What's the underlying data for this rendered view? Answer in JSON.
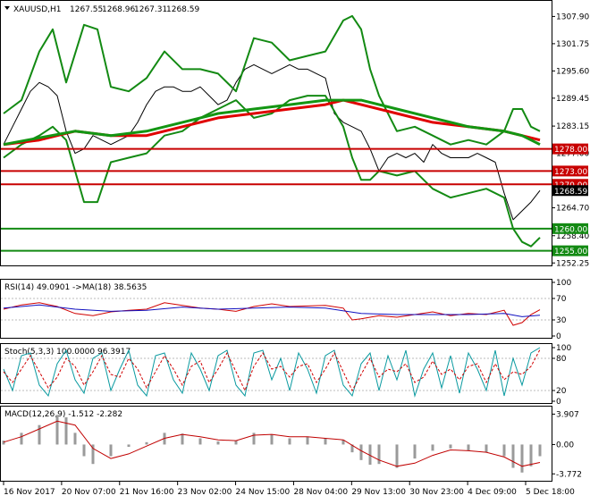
{
  "header": {
    "symbol": "XAUUSD,H1",
    "open": "1267.55",
    "high": "1268.96",
    "low": "1267.31",
    "close": "1268.59"
  },
  "colors": {
    "price": "#000000",
    "bollinger": "#138a13",
    "ma_slow": "#e00000",
    "ma_fast": "#139613",
    "support_line": "#138a13",
    "resistance_line": "#c80000",
    "rsi": "#d00000",
    "rsi_ma": "#1010c0",
    "stoch_main": "#0a9aa0",
    "stoch_signal": "#d00000",
    "macd_hist": "#9a9a9a",
    "macd_signal": "#c00000"
  },
  "chart_data": [
    {
      "type": "line",
      "name": "price_panel",
      "ylim": [
        1252.1,
        1310.0
      ],
      "y_ticks": [
        "1307.90",
        "1301.75",
        "1295.60",
        "1289.45",
        "1283.15",
        "1277.00",
        "1264.70",
        "1258.40",
        "1252.25"
      ],
      "x_ticks": [
        "16 Nov 2017",
        "20 Nov 07:00",
        "21 Nov 16:00",
        "23 Nov 02:00",
        "24 Nov 15:00",
        "28 Nov 04:00",
        "29 Nov 13:00",
        "30 Nov 23:00",
        "4 Dec 09:00",
        "5 Dec 18:00"
      ],
      "horizontal_levels": [
        {
          "label": "1278.00",
          "value": 1278.0,
          "kind": "resistance"
        },
        {
          "label": "1273.00",
          "value": 1273.0,
          "kind": "resistance"
        },
        {
          "label": "1270.00",
          "value": 1270.0,
          "kind": "resistance"
        },
        {
          "label": "1260.00",
          "value": 1260.0,
          "kind": "support"
        },
        {
          "label": "1255.00",
          "value": 1255.0,
          "kind": "support"
        }
      ],
      "current_price_label": "1268.59",
      "series": [
        {
          "role": "price",
          "x": [
            0,
            10,
            20,
            30,
            40,
            50,
            60,
            70,
            80,
            90,
            100,
            110,
            120,
            130,
            140,
            150,
            160,
            170,
            180,
            190,
            200,
            210,
            220,
            230,
            240,
            250,
            260,
            270,
            280,
            290,
            300,
            310,
            320,
            330,
            340,
            350,
            360,
            370,
            380,
            390,
            400,
            410,
            420,
            430,
            440,
            450,
            460,
            470,
            480,
            490,
            500,
            510,
            520,
            530,
            540,
            550,
            560,
            570,
            580,
            590,
            600
          ],
          "values": [
            1279,
            1283,
            1287,
            1291,
            1293,
            1292,
            1290,
            1282,
            1277,
            1278,
            1281,
            1280,
            1279,
            1280,
            1281,
            1284,
            1288,
            1291,
            1292,
            1292,
            1291,
            1291,
            1292,
            1290,
            1288,
            1289,
            1293,
            1296,
            1297,
            1296,
            1295,
            1296,
            1297,
            1296,
            1296,
            1295,
            1294,
            1286,
            1284,
            1283,
            1282,
            1278,
            1273,
            1276,
            1277,
            1276,
            1277,
            1275,
            1279,
            1277,
            1276,
            1276,
            1276,
            1277,
            1276,
            1275,
            1268,
            1262,
            1264,
            1266,
            1268.6
          ]
        },
        {
          "role": "bollinger_upper",
          "x": [
            0,
            20,
            40,
            55,
            70,
            90,
            105,
            120,
            140,
            160,
            180,
            200,
            220,
            240,
            260,
            280,
            300,
            320,
            340,
            360,
            380,
            390,
            400,
            410,
            420,
            440,
            460,
            480,
            500,
            520,
            540,
            560,
            570,
            580,
            590,
            600
          ],
          "values": [
            1286,
            1289,
            1300,
            1305,
            1293,
            1306,
            1305,
            1292,
            1291,
            1294,
            1300,
            1296,
            1296,
            1295,
            1291,
            1303,
            1302,
            1298,
            1299,
            1300,
            1307,
            1308,
            1305,
            1296,
            1290,
            1282,
            1283,
            1281,
            1279,
            1280,
            1279,
            1282,
            1287,
            1287,
            1283,
            1282
          ]
        },
        {
          "role": "bollinger_lower",
          "x": [
            0,
            20,
            40,
            55,
            70,
            90,
            105,
            120,
            140,
            160,
            180,
            200,
            220,
            240,
            260,
            280,
            300,
            320,
            340,
            360,
            380,
            390,
            400,
            410,
            420,
            440,
            460,
            480,
            500,
            520,
            540,
            560,
            570,
            580,
            590,
            600
          ],
          "values": [
            1276,
            1279,
            1281,
            1283,
            1280,
            1266,
            1266,
            1275,
            1276,
            1277,
            1281,
            1282,
            1285,
            1287,
            1289,
            1285,
            1286,
            1289,
            1290,
            1290,
            1283,
            1276,
            1271,
            1271,
            1273,
            1272,
            1273,
            1269,
            1267,
            1268,
            1269,
            1267,
            1260,
            1257,
            1256,
            1258
          ]
        },
        {
          "role": "ma_slow",
          "x": [
            0,
            40,
            80,
            120,
            160,
            200,
            240,
            280,
            320,
            360,
            380,
            400,
            440,
            480,
            520,
            560,
            600
          ],
          "values": [
            1279,
            1280,
            1282,
            1281,
            1281,
            1283,
            1285,
            1286,
            1287,
            1288,
            1289,
            1288,
            1286,
            1284,
            1283,
            1282,
            1280
          ]
        },
        {
          "role": "ma_fast",
          "x": [
            0,
            40,
            80,
            120,
            160,
            200,
            240,
            280,
            320,
            360,
            380,
            400,
            440,
            480,
            520,
            560,
            580,
            600
          ],
          "values": [
            1279,
            1280.5,
            1282,
            1281,
            1282,
            1284,
            1286,
            1287,
            1288,
            1289,
            1289,
            1289,
            1287,
            1285,
            1283,
            1282,
            1281,
            1279
          ]
        }
      ]
    },
    {
      "type": "line",
      "name": "rsi_panel",
      "title": "RSI(14) 49.0901 ->MA(18) 38.5635",
      "ylim": [
        0,
        100
      ],
      "y_ticks": [
        "100",
        "70",
        "30",
        "0"
      ],
      "series": [
        {
          "role": "rsi",
          "x": [
            0,
            20,
            40,
            60,
            80,
            100,
            120,
            140,
            160,
            180,
            200,
            220,
            240,
            260,
            280,
            300,
            320,
            340,
            360,
            380,
            390,
            400,
            420,
            440,
            460,
            480,
            500,
            520,
            540,
            560,
            570,
            580,
            590,
            600
          ],
          "values": [
            50,
            58,
            62,
            55,
            42,
            38,
            45,
            48,
            50,
            62,
            57,
            52,
            50,
            46,
            55,
            60,
            55,
            56,
            57,
            52,
            30,
            32,
            38,
            35,
            40,
            45,
            38,
            42,
            40,
            48,
            20,
            25,
            40,
            49
          ]
        },
        {
          "role": "rsi_ma",
          "x": [
            0,
            40,
            80,
            120,
            160,
            200,
            240,
            280,
            320,
            360,
            400,
            440,
            480,
            520,
            560,
            580,
            600
          ],
          "values": [
            52,
            58,
            50,
            46,
            48,
            54,
            50,
            52,
            54,
            52,
            42,
            40,
            40,
            40,
            42,
            36,
            38.6
          ]
        }
      ]
    },
    {
      "type": "line",
      "name": "stochastic_panel",
      "title": "Stoch(5,3,3) 100.0000 96.3917",
      "ylim": [
        0,
        100
      ],
      "y_ticks": [
        "100",
        "80",
        "20",
        "0"
      ],
      "series": [
        {
          "role": "stoch_main",
          "x": [
            0,
            10,
            20,
            30,
            40,
            50,
            60,
            70,
            80,
            90,
            100,
            110,
            120,
            130,
            140,
            150,
            160,
            170,
            180,
            190,
            200,
            210,
            220,
            230,
            240,
            250,
            260,
            270,
            280,
            290,
            300,
            310,
            320,
            330,
            340,
            350,
            360,
            370,
            380,
            390,
            400,
            410,
            420,
            430,
            440,
            450,
            460,
            470,
            480,
            490,
            500,
            510,
            520,
            530,
            540,
            550,
            560,
            570,
            580,
            590,
            600
          ],
          "values": [
            60,
            20,
            85,
            90,
            30,
            10,
            70,
            95,
            40,
            15,
            80,
            90,
            20,
            60,
            95,
            30,
            10,
            85,
            90,
            40,
            15,
            90,
            60,
            20,
            85,
            95,
            30,
            10,
            90,
            95,
            40,
            80,
            20,
            90,
            60,
            15,
            85,
            95,
            30,
            10,
            70,
            90,
            20,
            85,
            40,
            95,
            10,
            60,
            90,
            25,
            85,
            15,
            90,
            60,
            20,
            95,
            10,
            80,
            30,
            90,
            100
          ]
        },
        {
          "role": "stoch_signal",
          "x": [
            0,
            10,
            20,
            30,
            40,
            50,
            60,
            70,
            80,
            90,
            100,
            110,
            120,
            130,
            140,
            150,
            160,
            170,
            180,
            190,
            200,
            210,
            220,
            230,
            240,
            250,
            260,
            270,
            280,
            290,
            300,
            310,
            320,
            330,
            340,
            350,
            360,
            370,
            380,
            390,
            400,
            410,
            420,
            430,
            440,
            450,
            460,
            470,
            480,
            490,
            500,
            510,
            520,
            530,
            540,
            550,
            560,
            570,
            580,
            590,
            600
          ],
          "values": [
            55,
            35,
            60,
            85,
            55,
            25,
            45,
            80,
            65,
            30,
            55,
            85,
            50,
            45,
            80,
            60,
            25,
            55,
            85,
            60,
            30,
            65,
            75,
            35,
            60,
            90,
            55,
            20,
            65,
            90,
            60,
            65,
            45,
            65,
            70,
            35,
            60,
            90,
            55,
            20,
            50,
            80,
            45,
            60,
            55,
            70,
            35,
            45,
            75,
            50,
            60,
            40,
            65,
            70,
            35,
            70,
            40,
            55,
            50,
            65,
            96.4
          ]
        }
      ]
    },
    {
      "type": "bar",
      "name": "macd_panel",
      "title": "MACD(12,26,9) -1.512 -2.282",
      "ylim": [
        -4.2,
        4.3
      ],
      "y_ticks": [
        "3.907",
        "0.00",
        "-3.772"
      ],
      "series": [
        {
          "role": "macd_histogram",
          "x": [
            0,
            20,
            40,
            60,
            70,
            80,
            90,
            100,
            120,
            140,
            160,
            180,
            200,
            220,
            240,
            260,
            280,
            300,
            320,
            340,
            360,
            380,
            390,
            400,
            410,
            420,
            440,
            460,
            480,
            500,
            520,
            540,
            560,
            570,
            580,
            590,
            600
          ],
          "values": [
            0.5,
            1.5,
            2.5,
            3.8,
            3.5,
            1.5,
            -1.5,
            -2.5,
            -1.5,
            -0.3,
            0.3,
            1.5,
            1.4,
            0.8,
            0.4,
            0.5,
            1.5,
            1.3,
            0.8,
            1.0,
            0.8,
            0.6,
            -1.0,
            -2.0,
            -2.6,
            -2.5,
            -3.0,
            -1.8,
            -0.8,
            -0.5,
            -0.8,
            -1.0,
            -1.5,
            -3.0,
            -3.6,
            -2.8,
            -1.5
          ]
        },
        {
          "role": "macd_signal",
          "x": [
            0,
            20,
            40,
            60,
            80,
            100,
            120,
            140,
            160,
            180,
            200,
            220,
            240,
            260,
            280,
            300,
            320,
            340,
            360,
            380,
            400,
            420,
            440,
            460,
            480,
            500,
            520,
            540,
            560,
            580,
            600
          ],
          "values": [
            0.3,
            1.0,
            2.0,
            3.0,
            2.5,
            -0.5,
            -1.8,
            -1.2,
            -0.2,
            0.8,
            1.3,
            1.0,
            0.6,
            0.5,
            1.2,
            1.3,
            1.0,
            1.0,
            0.8,
            0.6,
            -0.8,
            -2.0,
            -2.8,
            -2.4,
            -1.4,
            -0.7,
            -0.8,
            -1.0,
            -1.6,
            -2.8,
            -2.3
          ]
        }
      ]
    }
  ]
}
